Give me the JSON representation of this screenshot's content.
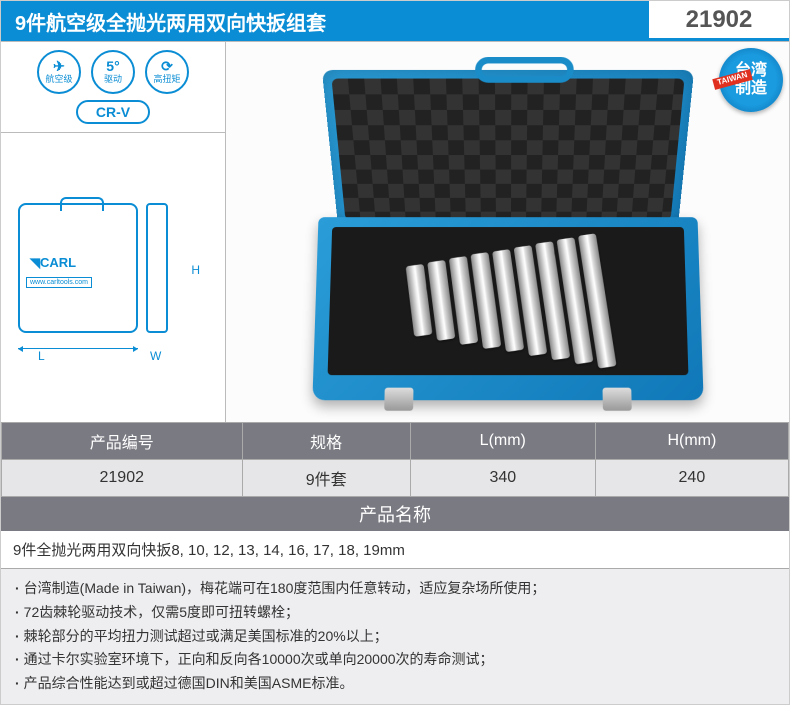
{
  "header": {
    "title": "9件航空级全抛光两用双向快扳组套",
    "product_code": "21902"
  },
  "badges": {
    "b1_line1": "✈",
    "b1_line2": "航空级",
    "b2_line1": "5°",
    "b2_line2": "驱动",
    "b3_line1": "⟳",
    "b3_line2": "高扭矩",
    "crv": "CR-V"
  },
  "diagram": {
    "brand": "◥CARL",
    "url": "www.carltools.com",
    "dim_L": "L",
    "dim_W": "W",
    "dim_H": "H"
  },
  "taiwan_badge": {
    "text": "台湾\n制造",
    "ribbon": "TAIWAN"
  },
  "spec_table": {
    "headers": [
      "产品编号",
      "规格",
      "L(mm)",
      "H(mm)"
    ],
    "row": [
      "21902",
      "9件套",
      "340",
      "240"
    ]
  },
  "product_name": {
    "header": "产品名称",
    "content": "9件全抛光两用双向快扳8, 10, 12, 13, 14, 16, 17, 18, 19mm"
  },
  "features": [
    "台湾制造(Made in Taiwan)，梅花端可在180度范围内任意转动，适应复杂场所使用；",
    "72齿棘轮驱动技术，仅需5度即可扭转螺栓；",
    "棘轮部分的平均扭力测试超过或满足美国标准的20%以上；",
    "通过卡尔实验室环境下，正向和反向各10000次或单向20000次的寿命测试；",
    "产品综合性能达到或超过德国DIN和美国ASME标准。"
  ],
  "colors": {
    "primary": "#0a8dd4",
    "table_header_bg": "#7a7a82",
    "table_cell_bg": "#e6e6e8",
    "features_bg": "#eeeef0"
  },
  "wrench_heights": [
    70,
    78,
    86,
    94,
    100,
    108,
    116,
    124,
    132
  ]
}
